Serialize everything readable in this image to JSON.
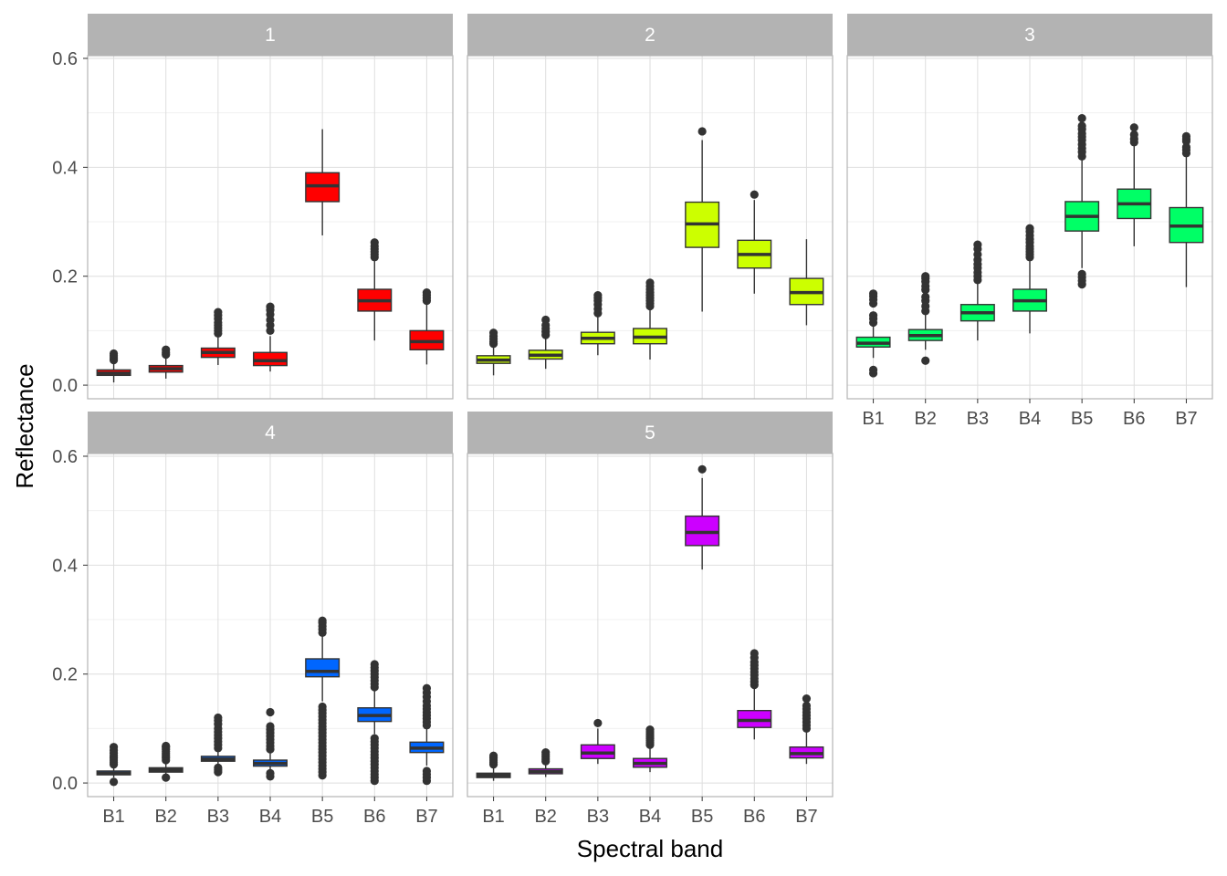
{
  "chart_data": {
    "type": "boxplot",
    "xlabel": "Spectral band",
    "ylabel": "Reflectance",
    "ylim": [
      -0.025,
      0.605
    ],
    "yticks": [
      "0.0",
      "0.2",
      "0.4",
      "0.6"
    ],
    "ytick_values": [
      0.0,
      0.2,
      0.4,
      0.6
    ],
    "categories": [
      "B1",
      "B2",
      "B3",
      "B4",
      "B5",
      "B6",
      "B7"
    ],
    "grid": true,
    "panels": [
      {
        "label": "1",
        "color": "#FF0000",
        "boxes": [
          {
            "band": "B1",
            "low": 0.005,
            "q1": 0.018,
            "median": 0.022,
            "q3": 0.028,
            "high": 0.042,
            "outliers": [
              0.046,
              0.05,
              0.054,
              0.058
            ]
          },
          {
            "band": "B2",
            "low": 0.012,
            "q1": 0.024,
            "median": 0.03,
            "q3": 0.036,
            "high": 0.052,
            "outliers": [
              0.056,
              0.06,
              0.065
            ]
          },
          {
            "band": "B3",
            "low": 0.037,
            "q1": 0.051,
            "median": 0.06,
            "q3": 0.068,
            "high": 0.088,
            "outliers": [
              0.095,
              0.1,
              0.105,
              0.11,
              0.115,
              0.122,
              0.128,
              0.134
            ]
          },
          {
            "band": "B4",
            "low": 0.025,
            "q1": 0.036,
            "median": 0.045,
            "q3": 0.06,
            "high": 0.09,
            "outliers": [
              0.1,
              0.11,
              0.12,
              0.13,
              0.138,
              0.144
            ]
          },
          {
            "band": "B5",
            "low": 0.275,
            "q1": 0.337,
            "median": 0.366,
            "q3": 0.39,
            "high": 0.47,
            "outliers": []
          },
          {
            "band": "B6",
            "low": 0.082,
            "q1": 0.136,
            "median": 0.155,
            "q3": 0.176,
            "high": 0.23,
            "outliers": [
              0.235,
              0.24,
              0.245,
              0.25,
              0.255,
              0.262
            ]
          },
          {
            "band": "B7",
            "low": 0.038,
            "q1": 0.065,
            "median": 0.08,
            "q3": 0.1,
            "high": 0.15,
            "outliers": [
              0.155,
              0.16,
              0.165,
              0.17
            ]
          }
        ]
      },
      {
        "label": "2",
        "color": "#CCFF00",
        "boxes": [
          {
            "band": "B1",
            "low": 0.018,
            "q1": 0.04,
            "median": 0.046,
            "q3": 0.054,
            "high": 0.072,
            "outliers": [
              0.076,
              0.08,
              0.085,
              0.09,
              0.096
            ]
          },
          {
            "band": "B2",
            "low": 0.03,
            "q1": 0.048,
            "median": 0.055,
            "q3": 0.064,
            "high": 0.088,
            "outliers": [
              0.092,
              0.098,
              0.104,
              0.11,
              0.12
            ]
          },
          {
            "band": "B3",
            "low": 0.055,
            "q1": 0.076,
            "median": 0.086,
            "q3": 0.097,
            "high": 0.126,
            "outliers": [
              0.132,
              0.14,
              0.148,
              0.155,
              0.16,
              0.165
            ]
          },
          {
            "band": "B4",
            "low": 0.047,
            "q1": 0.076,
            "median": 0.088,
            "q3": 0.104,
            "high": 0.14,
            "outliers": [
              0.145,
              0.15,
              0.155,
              0.16,
              0.165,
              0.17,
              0.176,
              0.182,
              0.188
            ]
          },
          {
            "band": "B5",
            "low": 0.135,
            "q1": 0.253,
            "median": 0.296,
            "q3": 0.336,
            "high": 0.45,
            "outliers": [
              0.466
            ]
          },
          {
            "band": "B6",
            "low": 0.168,
            "q1": 0.215,
            "median": 0.24,
            "q3": 0.266,
            "high": 0.34,
            "outliers": [
              0.35
            ]
          },
          {
            "band": "B7",
            "low": 0.11,
            "q1": 0.148,
            "median": 0.17,
            "q3": 0.196,
            "high": 0.268,
            "outliers": []
          }
        ]
      },
      {
        "label": "3",
        "color": "#00FF66",
        "boxes": [
          {
            "band": "B1",
            "low": 0.05,
            "q1": 0.07,
            "median": 0.077,
            "q3": 0.088,
            "high": 0.108,
            "outliers": [
              0.022,
              0.028,
              0.115,
              0.122,
              0.128,
              0.15,
              0.157,
              0.163,
              0.168
            ]
          },
          {
            "band": "B2",
            "low": 0.065,
            "q1": 0.082,
            "median": 0.091,
            "q3": 0.102,
            "high": 0.13,
            "outliers": [
              0.045,
              0.136,
              0.145,
              0.155,
              0.162,
              0.175,
              0.182,
              0.19,
              0.196,
              0.2
            ]
          },
          {
            "band": "B3",
            "low": 0.082,
            "q1": 0.118,
            "median": 0.133,
            "q3": 0.148,
            "high": 0.188,
            "outliers": [
              0.193,
              0.2,
              0.207,
              0.215,
              0.222,
              0.23,
              0.24,
              0.25,
              0.258
            ]
          },
          {
            "band": "B4",
            "low": 0.095,
            "q1": 0.136,
            "median": 0.155,
            "q3": 0.176,
            "high": 0.23,
            "outliers": [
              0.235,
              0.24,
              0.245,
              0.25,
              0.255,
              0.262,
              0.268,
              0.275,
              0.282,
              0.288
            ]
          },
          {
            "band": "B5",
            "low": 0.215,
            "q1": 0.283,
            "median": 0.31,
            "q3": 0.337,
            "high": 0.415,
            "outliers": [
              0.185,
              0.192,
              0.198,
              0.204,
              0.42,
              0.428,
              0.435,
              0.442,
              0.45,
              0.456,
              0.462,
              0.47,
              0.476,
              0.49
            ]
          },
          {
            "band": "B6",
            "low": 0.255,
            "q1": 0.306,
            "median": 0.333,
            "q3": 0.36,
            "high": 0.44,
            "outliers": [
              0.446,
              0.452,
              0.46,
              0.473
            ]
          },
          {
            "band": "B7",
            "low": 0.18,
            "q1": 0.262,
            "median": 0.292,
            "q3": 0.326,
            "high": 0.42,
            "outliers": [
              0.426,
              0.432,
              0.437,
              0.448,
              0.452,
              0.457
            ]
          }
        ]
      },
      {
        "label": "4",
        "color": "#0066FF",
        "boxes": [
          {
            "band": "B1",
            "low": 0.01,
            "q1": 0.015,
            "median": 0.018,
            "q3": 0.022,
            "high": 0.03,
            "outliers": [
              0.002,
              0.034,
              0.038,
              0.042,
              0.046,
              0.05,
              0.055,
              0.06,
              0.066
            ]
          },
          {
            "band": "B2",
            "low": 0.016,
            "q1": 0.02,
            "median": 0.024,
            "q3": 0.028,
            "high": 0.038,
            "outliers": [
              0.01,
              0.042,
              0.046,
              0.05,
              0.054,
              0.058,
              0.062,
              0.066,
              0.068
            ]
          },
          {
            "band": "B3",
            "low": 0.03,
            "q1": 0.04,
            "median": 0.044,
            "q3": 0.049,
            "high": 0.06,
            "outliers": [
              0.02,
              0.024,
              0.028,
              0.064,
              0.07,
              0.076,
              0.082,
              0.088,
              0.094,
              0.1,
              0.108,
              0.115,
              0.12
            ]
          },
          {
            "band": "B4",
            "low": 0.025,
            "q1": 0.031,
            "median": 0.036,
            "q3": 0.042,
            "high": 0.058,
            "outliers": [
              0.012,
              0.018,
              0.062,
              0.068,
              0.074,
              0.08,
              0.086,
              0.092,
              0.098,
              0.104,
              0.13
            ]
          },
          {
            "band": "B5",
            "low": 0.15,
            "q1": 0.195,
            "median": 0.205,
            "q3": 0.228,
            "high": 0.27,
            "outliers": [
              0.014,
              0.02,
              0.026,
              0.032,
              0.038,
              0.044,
              0.05,
              0.056,
              0.062,
              0.068,
              0.074,
              0.08,
              0.086,
              0.092,
              0.098,
              0.104,
              0.11,
              0.116,
              0.122,
              0.128,
              0.134,
              0.14,
              0.276,
              0.282,
              0.288,
              0.294,
              0.298
            ]
          },
          {
            "band": "B6",
            "low": 0.09,
            "q1": 0.113,
            "median": 0.124,
            "q3": 0.138,
            "high": 0.17,
            "outliers": [
              0.004,
              0.01,
              0.016,
              0.022,
              0.028,
              0.034,
              0.04,
              0.046,
              0.052,
              0.058,
              0.064,
              0.07,
              0.076,
              0.082,
              0.176,
              0.182,
              0.188,
              0.194,
              0.2,
              0.206,
              0.212,
              0.218
            ]
          },
          {
            "band": "B7",
            "low": 0.032,
            "q1": 0.056,
            "median": 0.064,
            "q3": 0.075,
            "high": 0.1,
            "outliers": [
              0.004,
              0.01,
              0.016,
              0.022,
              0.106,
              0.112,
              0.118,
              0.124,
              0.13,
              0.136,
              0.142,
              0.15,
              0.158,
              0.166,
              0.174
            ]
          }
        ]
      },
      {
        "label": "5",
        "color": "#CC00FF",
        "boxes": [
          {
            "band": "B1",
            "low": 0.004,
            "q1": 0.01,
            "median": 0.014,
            "q3": 0.018,
            "high": 0.03,
            "outliers": [
              0.034,
              0.038,
              0.042,
              0.046,
              0.05
            ]
          },
          {
            "band": "B2",
            "low": 0.011,
            "q1": 0.017,
            "median": 0.021,
            "q3": 0.026,
            "high": 0.036,
            "outliers": [
              0.04,
              0.044,
              0.048,
              0.052,
              0.056
            ]
          },
          {
            "band": "B3",
            "low": 0.035,
            "q1": 0.045,
            "median": 0.055,
            "q3": 0.07,
            "high": 0.1,
            "outliers": [
              0.11
            ]
          },
          {
            "band": "B4",
            "low": 0.02,
            "q1": 0.029,
            "median": 0.036,
            "q3": 0.045,
            "high": 0.065,
            "outliers": [
              0.07,
              0.074,
              0.078,
              0.082,
              0.086,
              0.09,
              0.094,
              0.098
            ]
          },
          {
            "band": "B5",
            "low": 0.392,
            "q1": 0.436,
            "median": 0.46,
            "q3": 0.49,
            "high": 0.56,
            "outliers": [
              0.576
            ]
          },
          {
            "band": "B6",
            "low": 0.08,
            "q1": 0.102,
            "median": 0.115,
            "q3": 0.133,
            "high": 0.175,
            "outliers": [
              0.18,
              0.186,
              0.192,
              0.198,
              0.204,
              0.21,
              0.216,
              0.222,
              0.23,
              0.238
            ]
          },
          {
            "band": "B7",
            "low": 0.035,
            "q1": 0.046,
            "median": 0.054,
            "q3": 0.066,
            "high": 0.095,
            "outliers": [
              0.1,
              0.106,
              0.112,
              0.118,
              0.124,
              0.13,
              0.136,
              0.142,
              0.155
            ]
          }
        ]
      }
    ]
  }
}
